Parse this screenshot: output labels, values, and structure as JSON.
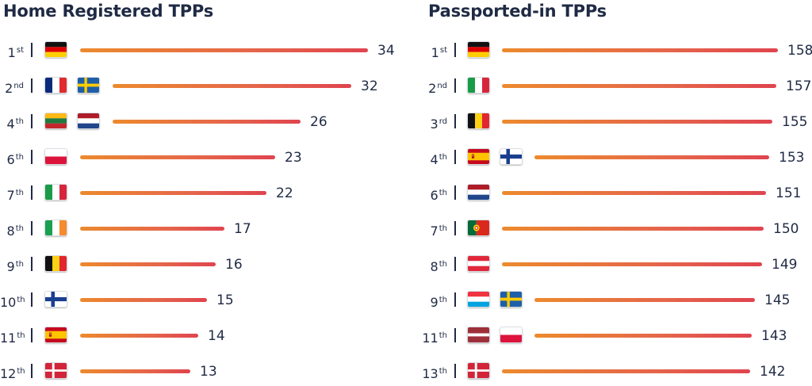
{
  "chart_data": [
    {
      "type": "bar",
      "orientation": "horizontal",
      "title": "Home Registered TPPs",
      "ylim": [
        0,
        34
      ],
      "rows": [
        {
          "rank": "1",
          "suffix": "st",
          "flags": [
            "germany"
          ],
          "value": 34
        },
        {
          "rank": "2",
          "suffix": "nd",
          "flags": [
            "france",
            "sweden"
          ],
          "value": 32
        },
        {
          "rank": "4",
          "suffix": "th",
          "flags": [
            "lithuania",
            "netherlands"
          ],
          "value": 26
        },
        {
          "rank": "6",
          "suffix": "th",
          "flags": [
            "poland"
          ],
          "value": 23
        },
        {
          "rank": "7",
          "suffix": "th",
          "flags": [
            "italy"
          ],
          "value": 22
        },
        {
          "rank": "8",
          "suffix": "th",
          "flags": [
            "ireland"
          ],
          "value": 17
        },
        {
          "rank": "9",
          "suffix": "th",
          "flags": [
            "belgium"
          ],
          "value": 16
        },
        {
          "rank": "10",
          "suffix": "th",
          "flags": [
            "finland"
          ],
          "value": 15
        },
        {
          "rank": "11",
          "suffix": "th",
          "flags": [
            "spain"
          ],
          "value": 14
        },
        {
          "rank": "12",
          "suffix": "th",
          "flags": [
            "denmark"
          ],
          "value": 13
        }
      ]
    },
    {
      "type": "bar",
      "orientation": "horizontal",
      "title": "Passported-in TPPs",
      "ylim": [
        0,
        158
      ],
      "rows": [
        {
          "rank": "1",
          "suffix": "st",
          "flags": [
            "germany"
          ],
          "value": 158
        },
        {
          "rank": "2",
          "suffix": "nd",
          "flags": [
            "italy"
          ],
          "value": 157
        },
        {
          "rank": "3",
          "suffix": "rd",
          "flags": [
            "belgium"
          ],
          "value": 155
        },
        {
          "rank": "4",
          "suffix": "th",
          "flags": [
            "spain",
            "finland"
          ],
          "value": 153
        },
        {
          "rank": "6",
          "suffix": "th",
          "flags": [
            "netherlands"
          ],
          "value": 151
        },
        {
          "rank": "7",
          "suffix": "th",
          "flags": [
            "portugal"
          ],
          "value": 150
        },
        {
          "rank": "8",
          "suffix": "th",
          "flags": [
            "austria"
          ],
          "value": 149
        },
        {
          "rank": "9",
          "suffix": "th",
          "flags": [
            "luxembourg",
            "sweden"
          ],
          "value": 145
        },
        {
          "rank": "11",
          "suffix": "th",
          "flags": [
            "latvia",
            "poland"
          ],
          "value": 143
        },
        {
          "rank": "13",
          "suffix": "th",
          "flags": [
            "denmark"
          ],
          "value": 142
        }
      ]
    }
  ],
  "colors": {
    "text": "#1f2a44",
    "bar_start": "#ec8a2e",
    "bar_end": "#e0444f"
  }
}
